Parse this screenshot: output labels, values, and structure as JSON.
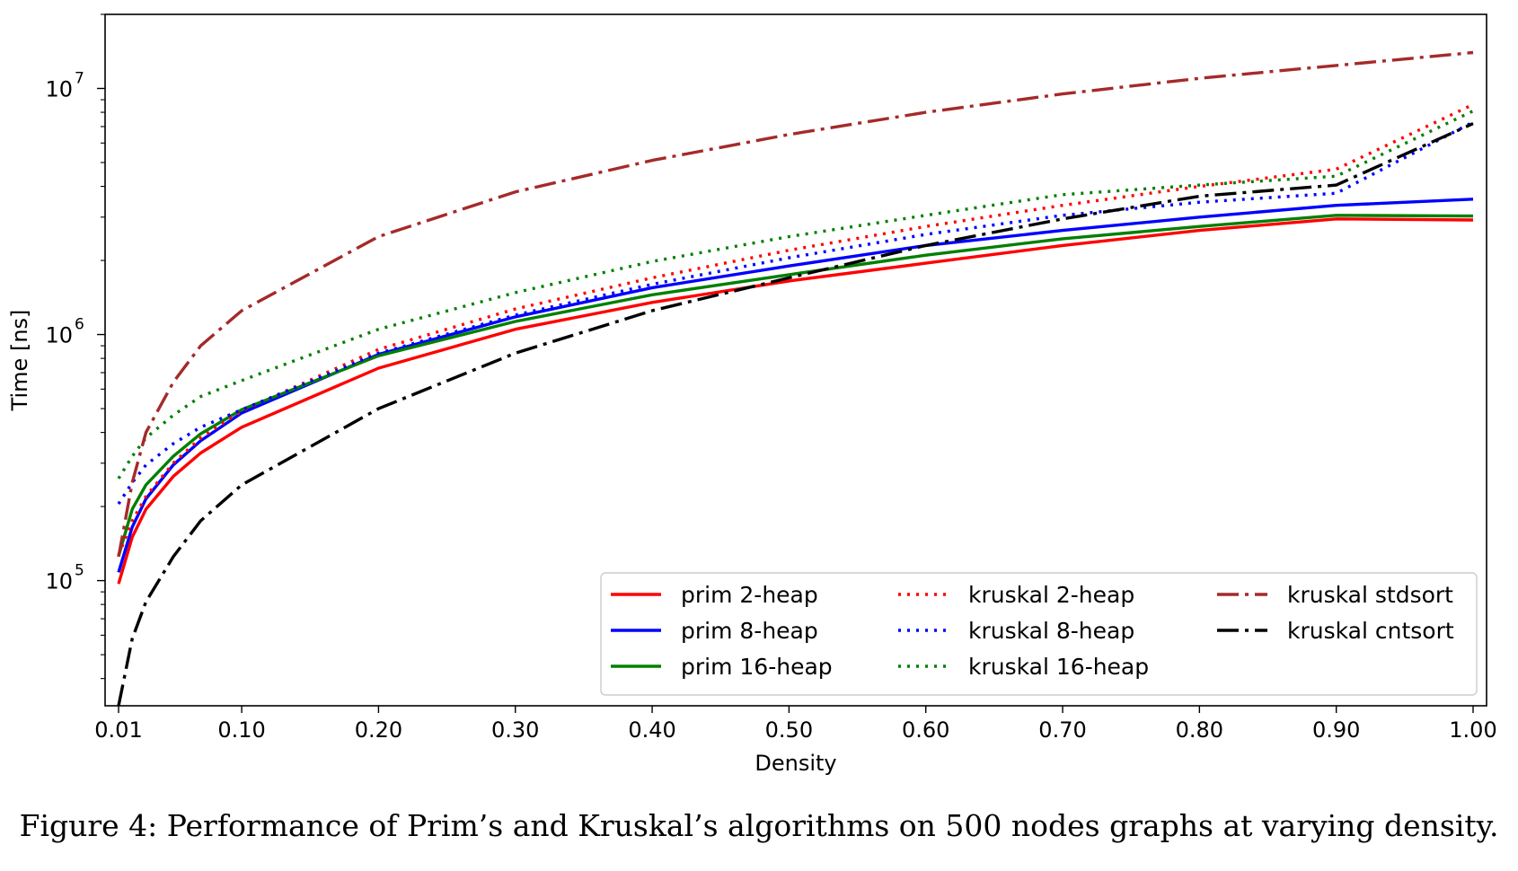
{
  "chart_data": {
    "type": "line",
    "xlabel": "Density",
    "ylabel": "Time [ns]",
    "yscale": "log",
    "xlim": [
      0.0,
      1.0
    ],
    "ylim": [
      31000,
      20000000
    ],
    "x_ticks": [
      0.01,
      0.1,
      0.2,
      0.3,
      0.4,
      0.5,
      0.6,
      0.7,
      0.8,
      0.9,
      1.0
    ],
    "x_tick_labels": [
      "0.01",
      "0.10",
      "0.20",
      "0.30",
      "0.40",
      "0.50",
      "0.60",
      "0.70",
      "0.80",
      "0.90",
      "1.00"
    ],
    "y_ticks": [
      {
        "value": 100000,
        "base": "10",
        "exp": "5"
      },
      {
        "value": 1000000,
        "base": "10",
        "exp": "6"
      },
      {
        "value": 10000000,
        "base": "10",
        "exp": "7"
      }
    ],
    "legend_position": "lower-right",
    "series": [
      {
        "name": "prim 2-heap",
        "color": "#ff0000",
        "style": "solid",
        "x": [
          0.01,
          0.02,
          0.03,
          0.05,
          0.07,
          0.1,
          0.2,
          0.3,
          0.4,
          0.5,
          0.6,
          0.7,
          0.8,
          0.9,
          1.0
        ],
        "y": [
          97000,
          150000,
          195000,
          265000,
          330000,
          420000,
          730000,
          1050000,
          1350000,
          1650000,
          1950000,
          2300000,
          2650000,
          2950000,
          2920000
        ]
      },
      {
        "name": "prim 8-heap",
        "color": "#0000ff",
        "style": "solid",
        "x": [
          0.01,
          0.02,
          0.03,
          0.05,
          0.07,
          0.1,
          0.2,
          0.3,
          0.4,
          0.5,
          0.6,
          0.7,
          0.8,
          0.9,
          1.0
        ],
        "y": [
          108000,
          165000,
          215000,
          295000,
          370000,
          480000,
          830000,
          1180000,
          1550000,
          1900000,
          2300000,
          2650000,
          3000000,
          3350000,
          3550000
        ]
      },
      {
        "name": "prim 16-heap",
        "color": "#008000",
        "style": "solid",
        "x": [
          0.01,
          0.02,
          0.03,
          0.05,
          0.07,
          0.1,
          0.2,
          0.3,
          0.4,
          0.5,
          0.6,
          0.7,
          0.8,
          0.9,
          1.0
        ],
        "y": [
          126000,
          195000,
          245000,
          320000,
          395000,
          495000,
          820000,
          1130000,
          1450000,
          1750000,
          2100000,
          2450000,
          2750000,
          3050000,
          3030000
        ]
      },
      {
        "name": "kruskal 2-heap",
        "color": "#ff0000",
        "style": "dotted",
        "x": [
          0.01,
          0.02,
          0.03,
          0.05,
          0.07,
          0.1,
          0.2,
          0.3,
          0.4,
          0.5,
          0.6,
          0.7,
          0.8,
          0.9,
          1.0
        ],
        "y": [
          127000,
          175000,
          220000,
          300000,
          380000,
          490000,
          870000,
          1270000,
          1700000,
          2200000,
          2750000,
          3350000,
          4000000,
          4700000,
          8600000
        ]
      },
      {
        "name": "kruskal 8-heap",
        "color": "#0000ff",
        "style": "dotted",
        "x": [
          0.01,
          0.02,
          0.03,
          0.05,
          0.07,
          0.1,
          0.2,
          0.3,
          0.4,
          0.5,
          0.6,
          0.7,
          0.8,
          0.9,
          1.0
        ],
        "y": [
          205000,
          250000,
          295000,
          360000,
          420000,
          495000,
          840000,
          1200000,
          1600000,
          2050000,
          2550000,
          3050000,
          3450000,
          3750000,
          7300000
        ]
      },
      {
        "name": "kruskal 16-heap",
        "color": "#008000",
        "style": "dotted",
        "x": [
          0.01,
          0.02,
          0.03,
          0.05,
          0.07,
          0.1,
          0.2,
          0.3,
          0.4,
          0.5,
          0.6,
          0.7,
          0.8,
          0.9,
          1.0
        ],
        "y": [
          260000,
          320000,
          380000,
          470000,
          560000,
          650000,
          1050000,
          1480000,
          1980000,
          2500000,
          3050000,
          3700000,
          4050000,
          4400000,
          8100000
        ]
      },
      {
        "name": "kruskal stdsort",
        "color": "#a52a2a",
        "style": "dashdot",
        "x": [
          0.01,
          0.02,
          0.03,
          0.05,
          0.07,
          0.1,
          0.2,
          0.3,
          0.4,
          0.5,
          0.6,
          0.7,
          0.8,
          0.9,
          1.0
        ],
        "y": [
          125000,
          250000,
          400000,
          640000,
          900000,
          1250000,
          2500000,
          3800000,
          5100000,
          6500000,
          8000000,
          9500000,
          11000000,
          12400000,
          14000000
        ]
      },
      {
        "name": "kruskal cntsort",
        "color": "#000000",
        "style": "dashdot",
        "x": [
          0.01,
          0.02,
          0.03,
          0.05,
          0.07,
          0.1,
          0.2,
          0.3,
          0.4,
          0.5,
          0.6,
          0.7,
          0.8,
          0.9,
          1.0
        ],
        "y": [
          31000,
          58000,
          82000,
          125000,
          175000,
          245000,
          500000,
          840000,
          1250000,
          1700000,
          2300000,
          2950000,
          3650000,
          4050000,
          7200000
        ]
      }
    ]
  },
  "caption": "Figure 4:  Performance of Prim’s and Kruskal’s algorithms on 500 nodes graphs at varying density."
}
